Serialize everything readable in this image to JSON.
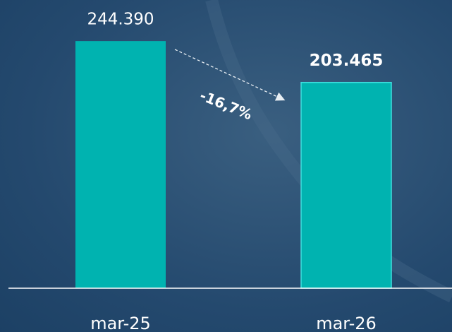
{
  "chart_data": {
    "type": "bar",
    "categories": [
      "mar-25",
      "mar-26"
    ],
    "values": [
      244390,
      203465
    ],
    "value_labels": [
      "244.390",
      "203.465"
    ],
    "color": "#00b3b0",
    "ylim": [
      0,
      285000
    ],
    "annotation": "-16,7%"
  }
}
